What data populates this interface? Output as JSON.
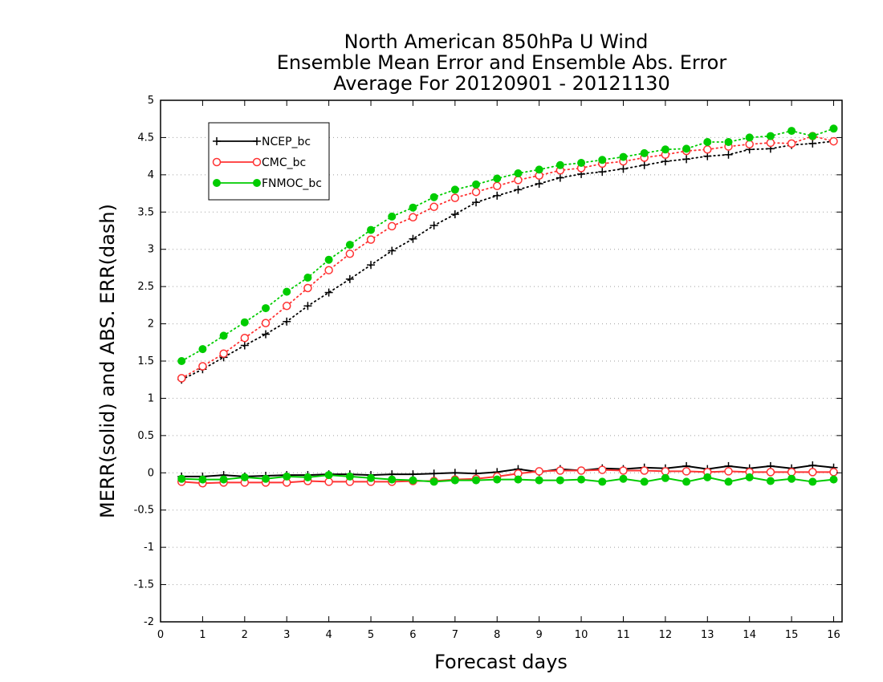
{
  "chart_data": {
    "type": "line",
    "title_lines": [
      "North American 850hPa U Wind",
      "Ensemble Mean Error and Ensemble Abs. Error",
      "Average For 20120901 - 20121130"
    ],
    "xlabel": "Forecast days",
    "ylabel": "MERR(solid) and ABS. ERR(dash)",
    "xlim": [
      0,
      16.2
    ],
    "ylim": [
      -2,
      5
    ],
    "x_ticks": [
      0,
      1,
      2,
      3,
      4,
      5,
      6,
      7,
      8,
      9,
      10,
      11,
      12,
      13,
      14,
      15,
      16
    ],
    "y_ticks": [
      -2,
      -1.5,
      -1,
      -0.5,
      0,
      0.5,
      1,
      1.5,
      2,
      2.5,
      3,
      3.5,
      4,
      4.5,
      5
    ],
    "y_tick_labels": [
      "-2",
      "-1.5",
      "-1",
      "-0.5",
      "0",
      "0.5",
      "1",
      "1.5",
      "2",
      "2.5",
      "3",
      "3.5",
      "4",
      "4.5",
      "5"
    ],
    "grid": "horizontal dotted",
    "legend_position": "top-left",
    "x": [
      0.5,
      1,
      1.5,
      2,
      2.5,
      3,
      3.5,
      4,
      4.5,
      5,
      5.5,
      6,
      6.5,
      7,
      7.5,
      8,
      8.5,
      9,
      9.5,
      10,
      10.5,
      11,
      11.5,
      12,
      12.5,
      13,
      13.5,
      14,
      14.5,
      15,
      15.5,
      16
    ],
    "series": [
      {
        "name": "NCEP_bc",
        "color": "#000000",
        "marker": "plus",
        "mean_error": [
          -0.05,
          -0.05,
          -0.03,
          -0.05,
          -0.04,
          -0.03,
          -0.03,
          -0.02,
          -0.02,
          -0.03,
          -0.02,
          -0.02,
          -0.01,
          0.0,
          -0.01,
          0.01,
          0.05,
          0.01,
          0.05,
          0.03,
          0.06,
          0.05,
          0.07,
          0.06,
          0.09,
          0.05,
          0.09,
          0.06,
          0.09,
          0.06,
          0.1,
          0.07
        ],
        "abs_error": [
          1.25,
          1.39,
          1.55,
          1.71,
          1.86,
          2.03,
          2.24,
          2.42,
          2.6,
          2.79,
          2.98,
          3.14,
          3.32,
          3.47,
          3.63,
          3.72,
          3.8,
          3.88,
          3.96,
          4.01,
          4.04,
          4.08,
          4.13,
          4.18,
          4.21,
          4.25,
          4.27,
          4.34,
          4.35,
          4.4,
          4.42,
          4.45
        ]
      },
      {
        "name": "CMC_bc",
        "color": "#ff3333",
        "marker": "open-circle",
        "mean_error": [
          -0.12,
          -0.14,
          -0.13,
          -0.13,
          -0.13,
          -0.13,
          -0.11,
          -0.12,
          -0.12,
          -0.12,
          -0.12,
          -0.11,
          -0.11,
          -0.09,
          -0.08,
          -0.05,
          -0.01,
          0.02,
          0.03,
          0.03,
          0.04,
          0.03,
          0.03,
          0.02,
          0.02,
          0.01,
          0.02,
          0.01,
          0.01,
          0.01,
          0.01,
          0.01
        ],
        "abs_error": [
          1.27,
          1.43,
          1.6,
          1.81,
          2.01,
          2.24,
          2.48,
          2.72,
          2.94,
          3.13,
          3.31,
          3.43,
          3.57,
          3.69,
          3.77,
          3.85,
          3.93,
          3.99,
          4.06,
          4.09,
          4.15,
          4.18,
          4.23,
          4.27,
          4.32,
          4.34,
          4.38,
          4.41,
          4.43,
          4.42,
          4.52,
          4.45
        ]
      },
      {
        "name": "FNMOC_bc",
        "color": "#00cc00",
        "marker": "filled-circle",
        "mean_error": [
          -0.08,
          -0.09,
          -0.09,
          -0.06,
          -0.08,
          -0.05,
          -0.06,
          -0.03,
          -0.05,
          -0.07,
          -0.09,
          -0.1,
          -0.12,
          -0.1,
          -0.1,
          -0.09,
          -0.09,
          -0.1,
          -0.1,
          -0.09,
          -0.12,
          -0.08,
          -0.12,
          -0.07,
          -0.12,
          -0.06,
          -0.12,
          -0.06,
          -0.11,
          -0.08,
          -0.12,
          -0.09
        ],
        "abs_error": [
          1.5,
          1.66,
          1.84,
          2.02,
          2.21,
          2.43,
          2.62,
          2.86,
          3.06,
          3.26,
          3.44,
          3.56,
          3.7,
          3.8,
          3.87,
          3.95,
          4.02,
          4.07,
          4.13,
          4.16,
          4.2,
          4.24,
          4.29,
          4.34,
          4.35,
          4.44,
          4.44,
          4.5,
          4.52,
          4.59,
          4.52,
          4.62
        ]
      }
    ]
  }
}
